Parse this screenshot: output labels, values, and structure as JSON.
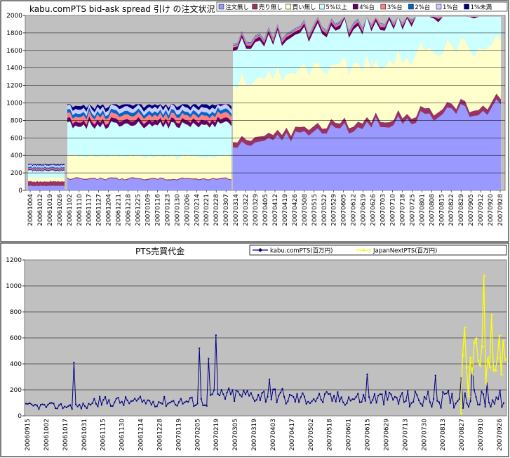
{
  "charts": [
    {
      "type": "area",
      "title": "kabu.comPTS bid-ask spread 引け の注文状況",
      "ylim": [
        0,
        2000
      ],
      "yticks": [
        "0",
        "200",
        "400",
        "600",
        "800",
        "1000",
        "1200",
        "1400",
        "1600",
        "1800",
        "2000"
      ],
      "legend": [
        {
          "name": "注文無し",
          "color": "#9999ff"
        },
        {
          "name": "売り無し",
          "color": "#993366"
        },
        {
          "name": "買い無し",
          "color": "#ffffcc"
        },
        {
          "name": "5%以上",
          "color": "#ccffff"
        },
        {
          "name": "4%台",
          "color": "#660066"
        },
        {
          "name": "3%台",
          "color": "#ff8080"
        },
        {
          "name": "2%台",
          "color": "#0066cc"
        },
        {
          "name": "1%台",
          "color": "#ccccff"
        },
        {
          "name": "1%未満",
          "color": "#000080"
        }
      ],
      "xtick_labels": [
        "20061004",
        "20061012",
        "20061019",
        "20061026",
        "20061102",
        "20061110",
        "20061117",
        "20061127",
        "20061204",
        "20061211",
        "20061218",
        "20061225",
        "20070109",
        "20070116",
        "20070123",
        "20070130",
        "20070206",
        "20070214",
        "20070221",
        "20070228",
        "20070307",
        "20070314",
        "20070322",
        "20070329",
        "20070405",
        "20070412",
        "20070419",
        "20070426",
        "20070508",
        "20070515",
        "20070522",
        "20070529",
        "20070605",
        "20070612",
        "20070619",
        "20070626",
        "20070703",
        "20070710",
        "20070718",
        "20070725",
        "20070801",
        "20070808",
        "20070815",
        "20070822",
        "20070829",
        "20070905",
        "20070912",
        "20070920",
        "20070928"
      ],
      "segments": [
        {
          "from": "20061004",
          "to": "20061031",
          "total": 300
        },
        {
          "from": "20061101",
          "to": "20070312",
          "total": 975
        },
        {
          "from": "20070313",
          "to": "20070928",
          "total": 1965
        }
      ]
    },
    {
      "type": "line",
      "title": "PTS売買代金",
      "ylim": [
        0,
        1200
      ],
      "yticks": [
        "0",
        "200",
        "400",
        "600",
        "800",
        "1000",
        "1200"
      ],
      "series": [
        {
          "name": "kabu.comPTS(百万円)",
          "color": "#000080"
        },
        {
          "name": "JapanNextPTS(百万円)",
          "color": "#ffff00"
        }
      ],
      "xtick_labels": [
        "20060915",
        "20061002",
        "20061017",
        "20061031",
        "20061115",
        "20061130",
        "20061214",
        "20061228",
        "20070119",
        "20070205",
        "20070219",
        "20070305",
        "20070319",
        "20070403",
        "20070417",
        "20070502",
        "20070518",
        "20070601",
        "20070615",
        "20070629",
        "20070713",
        "20070730",
        "20070813",
        "20070827",
        "20070910",
        "20070926"
      ],
      "peaks_kabu": [
        {
          "x": "20061017",
          "y": 410
        },
        {
          "x": "20070219",
          "y": 520
        },
        {
          "x": "20070305",
          "y": 620
        }
      ],
      "peaks_japannext": [
        {
          "x": "20070827",
          "y": 680
        },
        {
          "x": "20070910",
          "y": 1080
        }
      ]
    }
  ]
}
